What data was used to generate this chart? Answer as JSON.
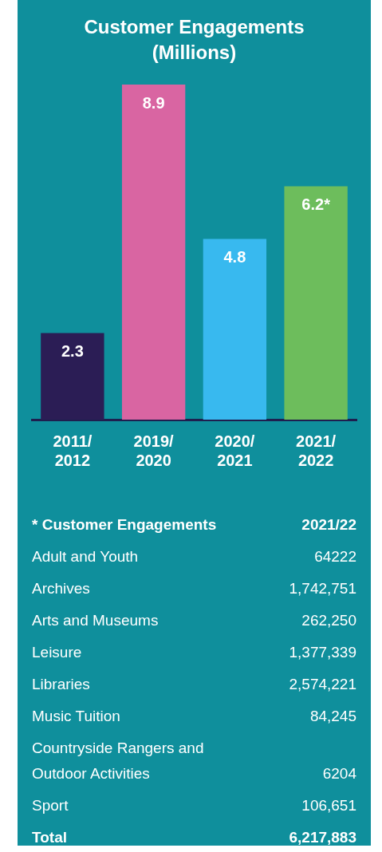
{
  "chart_data": {
    "type": "bar",
    "title": "Customer Engagements (Millions)",
    "categories": [
      "2011/2012",
      "2019/2020",
      "2020/2021",
      "2021/2022"
    ],
    "values": [
      2.3,
      8.9,
      4.8,
      6.2
    ],
    "colors": [
      "#2b1d55",
      "#d965a2",
      "#38b9ef",
      "#6dbd5c"
    ],
    "value_labels": [
      "2.3",
      "8.9",
      "4.8",
      "6.2*"
    ],
    "grid": false,
    "legend": false,
    "annotations": [
      "* Customer Engagements",
      "2021/22",
      "Adult and Youth",
      "64222",
      "Archives",
      "1,742,751",
      "Arts and Museums",
      "262,250",
      "Leisure",
      "1,377,339",
      "Libraries",
      "2,574,221",
      "Music Tuition",
      "84,245",
      "Countryside Rangers and Outdoor Activities",
      "6204",
      "Sport",
      "106,651",
      "Total",
      "6,217,883"
    ]
  }
}
